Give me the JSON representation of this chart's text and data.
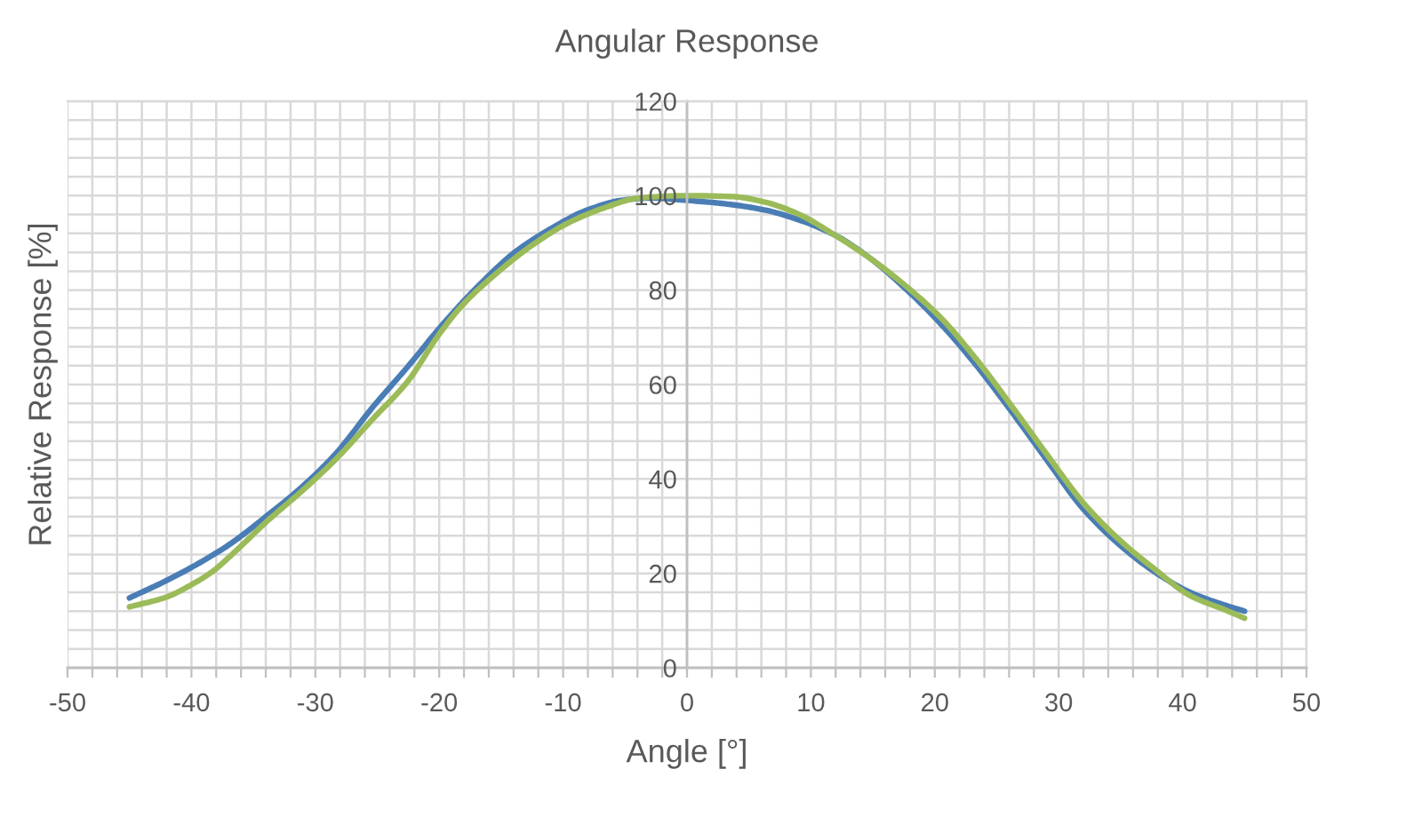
{
  "chart_data": {
    "type": "line",
    "title": "Angular Response",
    "xlabel": "Angle [°]",
    "ylabel": "Relative Response [%]",
    "series": [
      {
        "color": "#4a7db5",
        "x": [
          -45,
          -42,
          -39.5,
          -37,
          -34,
          -31,
          -28.3,
          -25.4,
          -22.5,
          -19.7,
          -16.8,
          -13.9,
          -11,
          -8.2,
          -5.3,
          -3,
          0,
          3,
          6.2,
          9,
          11.9,
          14.8,
          17.6,
          20.5,
          23.4,
          26.3,
          29.1,
          32,
          34.9,
          37.7,
          40.6,
          43.5,
          45
        ],
        "values": [
          14.8,
          18.5,
          22,
          26,
          32,
          38.5,
          45.5,
          55.1,
          63.9,
          72.8,
          81,
          88,
          93,
          96.8,
          99,
          99.5,
          99,
          98.3,
          97,
          94.9,
          91.7,
          86.7,
          80.4,
          72.8,
          63.9,
          53.9,
          43.8,
          33.6,
          26.1,
          20.4,
          16,
          13.2,
          12
        ]
      },
      {
        "color": "#9bbb59",
        "x": [
          -45,
          -42,
          -40.2,
          -38.3,
          -36.4,
          -34,
          -31.1,
          -28.3,
          -25.4,
          -22.5,
          -20.1,
          -18.2,
          -15.4,
          -12.5,
          -9.6,
          -6.7,
          -3.9,
          0,
          3.7,
          6.2,
          9,
          11.9,
          14.8,
          17.6,
          20.5,
          23.4,
          26.3,
          29.1,
          32,
          34.9,
          37.7,
          40.6,
          43.5,
          45
        ],
        "values": [
          12.9,
          15,
          17.3,
          20.4,
          24.8,
          30.8,
          37.4,
          44.3,
          52.6,
          60.8,
          70.3,
          76.6,
          83.5,
          89.5,
          94.2,
          97.4,
          99.5,
          100,
          99.8,
          98.7,
          96.1,
          91.7,
          86.7,
          81,
          74.1,
          65.2,
          55.1,
          45,
          34.9,
          27.1,
          21,
          15.3,
          12.2,
          10.5
        ]
      }
    ],
    "xlim": [
      -50,
      50
    ],
    "xticks": [
      -50,
      {
        "value": -48,
        "label": null
      },
      {
        "value": -46,
        "label": null
      },
      {
        "value": -44,
        "label": null
      },
      {
        "value": -42,
        "label": null
      },
      -40,
      {
        "value": -38,
        "label": null
      },
      {
        "value": -36,
        "label": null
      },
      {
        "value": -34,
        "label": null
      },
      {
        "value": -32,
        "label": null
      },
      -30,
      {
        "value": -28,
        "label": null
      },
      {
        "value": -26,
        "label": null
      },
      {
        "value": -24,
        "label": null
      },
      {
        "value": -22,
        "label": null
      },
      -20,
      {
        "value": -18,
        "label": null
      },
      {
        "value": -16,
        "label": null
      },
      {
        "value": -14,
        "label": null
      },
      {
        "value": -12,
        "label": null
      },
      -10,
      {
        "value": -8,
        "label": null
      },
      {
        "value": -6,
        "label": null
      },
      {
        "value": -4,
        "label": null
      },
      {
        "value": -2,
        "label": null
      },
      0,
      {
        "value": 2,
        "label": null
      },
      {
        "value": 4,
        "label": null
      },
      {
        "value": 6,
        "label": null
      },
      {
        "value": 8,
        "label": null
      },
      10,
      {
        "value": 12,
        "label": null
      },
      {
        "value": 14,
        "label": null
      },
      {
        "value": 16,
        "label": null
      },
      {
        "value": 18,
        "label": null
      },
      20,
      {
        "value": 22,
        "label": null
      },
      {
        "value": 24,
        "label": null
      },
      {
        "value": 26,
        "label": null
      },
      {
        "value": 28,
        "label": null
      },
      30,
      {
        "value": 32,
        "label": null
      },
      {
        "value": 34,
        "label": null
      },
      {
        "value": 36,
        "label": null
      },
      {
        "value": 38,
        "label": null
      },
      40,
      {
        "value": 42,
        "label": null
      },
      {
        "value": 44,
        "label": null
      },
      {
        "value": 46,
        "label": null
      },
      {
        "value": 48,
        "label": null
      },
      50
    ],
    "ylim": [
      0,
      120
    ],
    "yticks": [
      0,
      {
        "value": 4,
        "label": null
      },
      {
        "value": 8,
        "label": null
      },
      {
        "value": 12,
        "label": null
      },
      {
        "value": 16,
        "label": null
      },
      20,
      {
        "value": 24,
        "label": null
      },
      {
        "value": 28,
        "label": null
      },
      {
        "value": 32,
        "label": null
      },
      {
        "value": 36,
        "label": null
      },
      40,
      {
        "value": 44,
        "label": null
      },
      {
        "value": 48,
        "label": null
      },
      {
        "value": 52,
        "label": null
      },
      {
        "value": 56,
        "label": null
      },
      60,
      {
        "value": 64,
        "label": null
      },
      {
        "value": 68,
        "label": null
      },
      {
        "value": 72,
        "label": null
      },
      {
        "value": 76,
        "label": null
      },
      80,
      {
        "value": 84,
        "label": null
      },
      {
        "value": 88,
        "label": null
      },
      {
        "value": 92,
        "label": null
      },
      {
        "value": 96,
        "label": null
      },
      100,
      {
        "value": 104,
        "label": null
      },
      {
        "value": 108,
        "label": null
      },
      {
        "value": 112,
        "label": null
      },
      {
        "value": 116,
        "label": null
      },
      120
    ],
    "grid": true
  }
}
